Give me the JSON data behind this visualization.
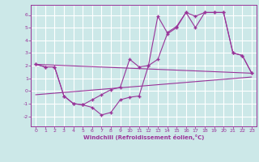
{
  "background_color": "#cce8e8",
  "grid_color": "#ffffff",
  "line_color": "#993399",
  "spine_color": "#666688",
  "x_ticks": [
    0,
    1,
    2,
    3,
    4,
    5,
    6,
    7,
    8,
    9,
    10,
    11,
    12,
    13,
    14,
    15,
    16,
    17,
    18,
    19,
    20,
    21,
    22,
    23
  ],
  "y_ticks": [
    -2,
    -1,
    0,
    1,
    2,
    3,
    4,
    5,
    6
  ],
  "xlabel": "Windchill (Refroidissement éolien,°C)",
  "xlim": [
    -0.5,
    23.5
  ],
  "ylim": [
    -2.8,
    6.8
  ],
  "line1_x": [
    0,
    1,
    2,
    3,
    4,
    5,
    6,
    7,
    8,
    9,
    10,
    11,
    12,
    13,
    14,
    15,
    16,
    17,
    18,
    19,
    20,
    21,
    22,
    23
  ],
  "line1_y": [
    2.1,
    1.9,
    1.9,
    -0.4,
    -1.0,
    -1.1,
    -1.3,
    -1.9,
    -1.7,
    -0.7,
    -0.5,
    -0.4,
    2.0,
    5.9,
    4.6,
    5.1,
    6.2,
    5.0,
    6.2,
    6.2,
    6.2,
    3.0,
    2.8,
    1.4
  ],
  "line2_x": [
    0,
    1,
    2,
    3,
    4,
    5,
    6,
    7,
    8,
    9,
    10,
    11,
    12,
    13,
    14,
    15,
    16,
    17,
    18,
    19,
    20,
    21,
    22,
    23
  ],
  "line2_y": [
    2.1,
    1.9,
    1.9,
    -0.4,
    -1.0,
    -1.1,
    -0.7,
    -0.3,
    0.1,
    0.3,
    2.5,
    1.9,
    2.0,
    2.5,
    4.5,
    5.0,
    6.2,
    5.9,
    6.2,
    6.2,
    6.2,
    3.0,
    2.8,
    1.4
  ],
  "line3_x": [
    0,
    23
  ],
  "line3_y": [
    2.1,
    1.4
  ],
  "line4_x": [
    0,
    23
  ],
  "line4_y": [
    -0.3,
    1.1
  ]
}
